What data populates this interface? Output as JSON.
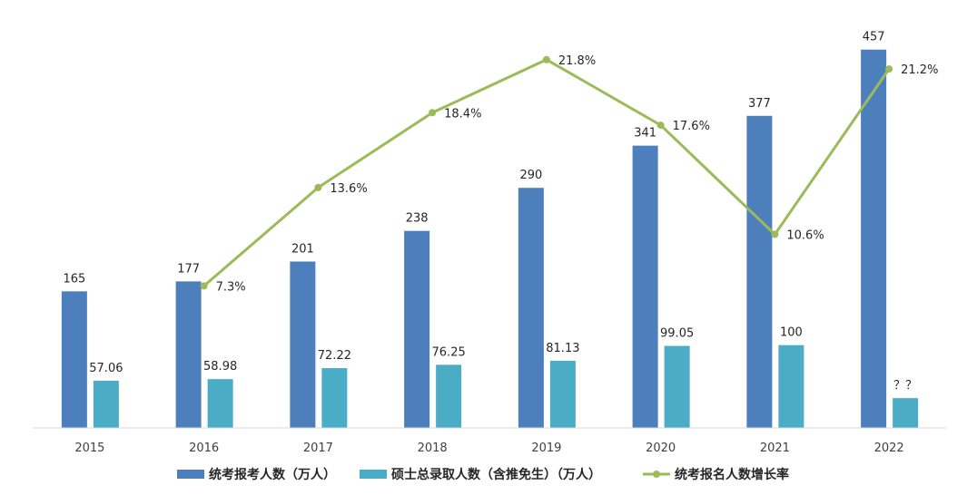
{
  "colors": {
    "applicants": "#4e7fbd",
    "admissions": "#4bacc6",
    "growth": "#9bbb59",
    "axis": "#d9d9d9",
    "text": "#262626"
  },
  "chart_data": {
    "type": "bar",
    "categories": [
      "2015",
      "2016",
      "2017",
      "2018",
      "2019",
      "2020",
      "2021",
      "2022"
    ],
    "series": [
      {
        "name": "统考报考人数（万人）",
        "type": "bar",
        "values": [
          165,
          177,
          201,
          238,
          290,
          341,
          377,
          457
        ],
        "labels": [
          "165",
          "177",
          "201",
          "238",
          "290",
          "341",
          "377",
          "457"
        ]
      },
      {
        "name": "硕士总录取人数（含推免生）（万人）",
        "type": "bar",
        "values": [
          57.06,
          58.98,
          72.22,
          76.25,
          81.13,
          99.05,
          100,
          null
        ],
        "display_value_2022": 36,
        "labels": [
          "57.06",
          "58.98",
          "72.22",
          "76.25",
          "81.13",
          "99.05",
          "100",
          "？？"
        ]
      },
      {
        "name": "统考报名人数增长率",
        "type": "line",
        "values": [
          null,
          7.3,
          13.6,
          18.4,
          21.8,
          17.6,
          10.6,
          21.2
        ],
        "labels": [
          "",
          "7.3%",
          "13.6%",
          "18.4%",
          "21.8%",
          "17.6%",
          "10.6%",
          "21.2%"
        ]
      }
    ],
    "bar_axis_max": 460,
    "line_axis_range": [
      -1.8,
      22.6
    ],
    "legend_position": "bottom",
    "grid": false
  }
}
